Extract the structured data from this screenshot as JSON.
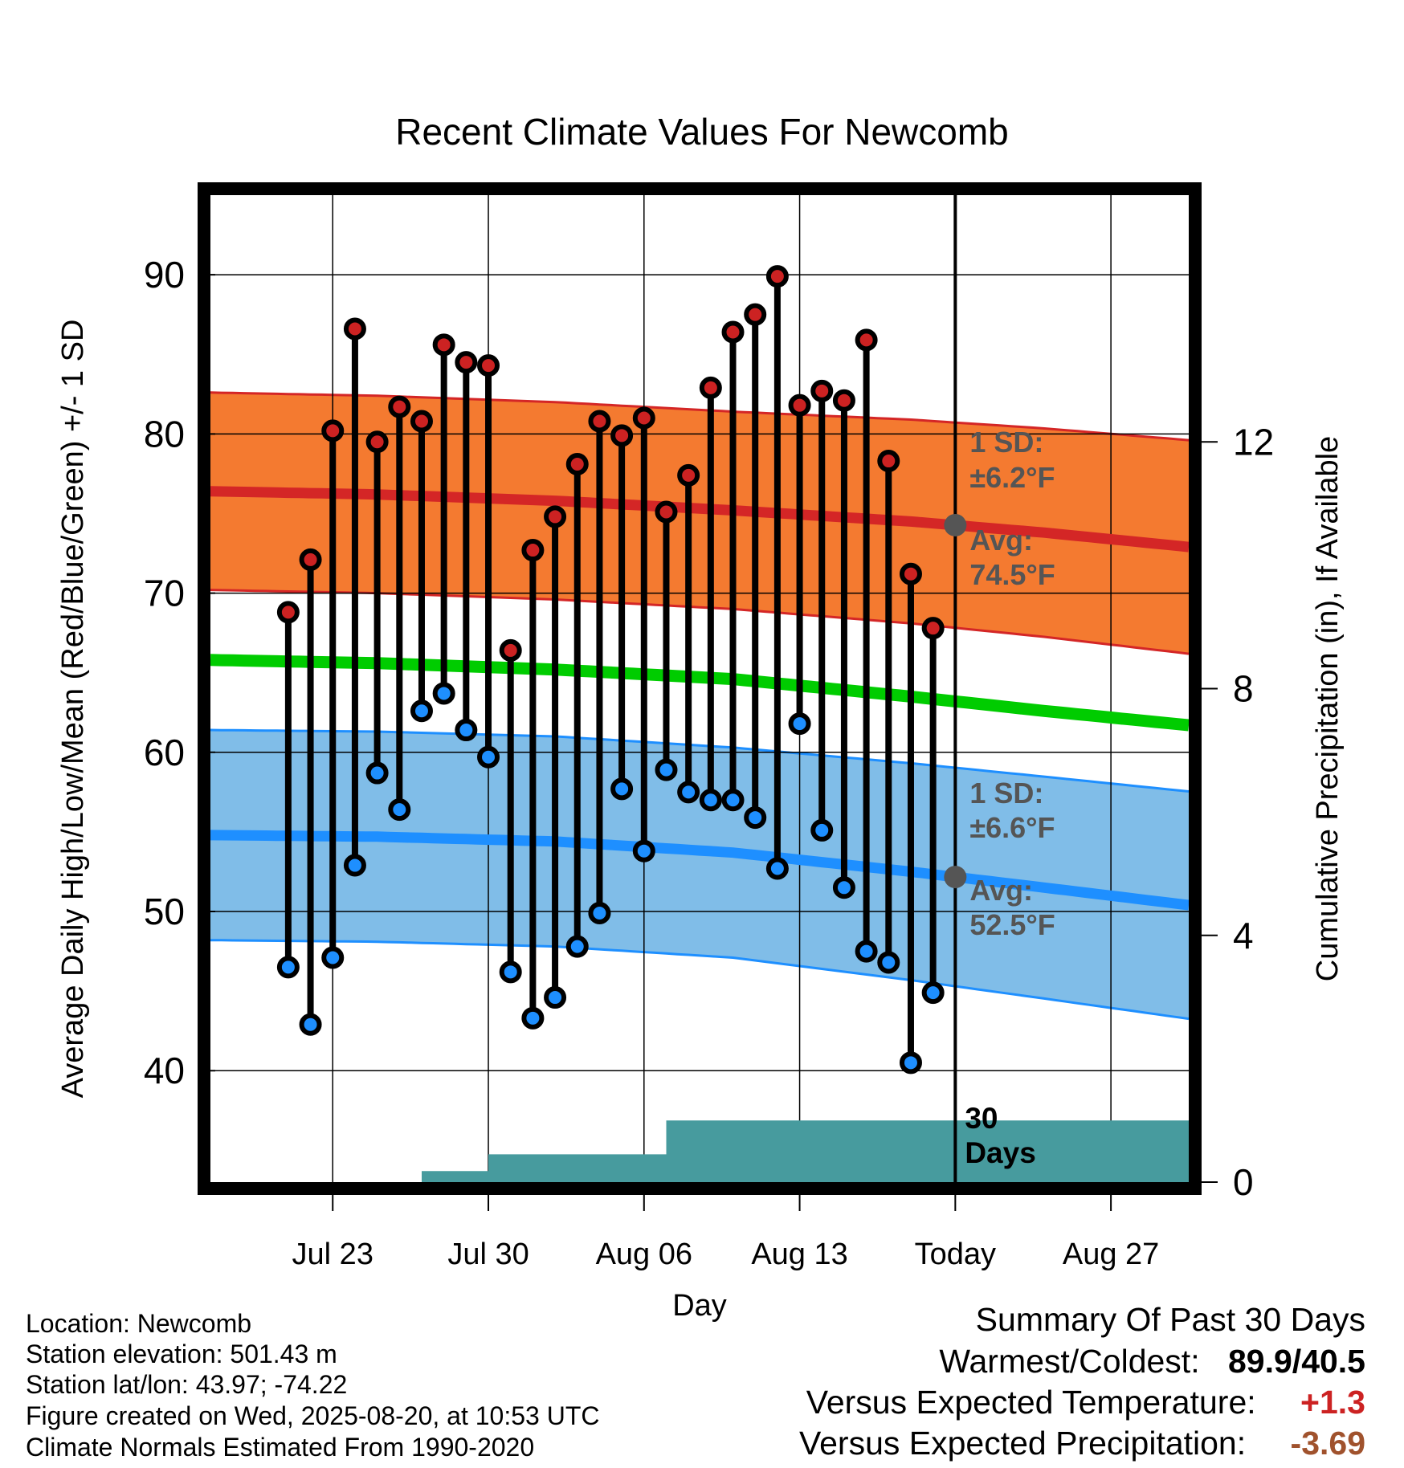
{
  "chart_data": {
    "type": "line",
    "title": "Recent Climate Values For Newcomb",
    "xlabel": "Day",
    "ylabel": "Average Daily High/Low/Mean (Red/Blue/Green) +/- 1 SD",
    "y2label": "Cumulative Precipitation (in), If Available",
    "ylim": [
      33,
      95
    ],
    "y2lim": [
      0,
      16
    ],
    "xlim": [
      -33.5,
      10.5
    ],
    "x_units": "days relative to Today (Aug 20)",
    "yticks": [
      40,
      50,
      60,
      70,
      80,
      90
    ],
    "y2ticks": [
      0,
      4,
      8,
      12
    ],
    "xticks": [
      {
        "day": -28,
        "label": "Jul 23"
      },
      {
        "day": -21,
        "label": "Jul 30"
      },
      {
        "day": -14,
        "label": "Aug 06"
      },
      {
        "day": -7,
        "label": "Aug 13"
      },
      {
        "day": 0,
        "label": "Today"
      },
      {
        "day": 7,
        "label": "Aug 27"
      }
    ],
    "grid": true,
    "today_marker": {
      "day": 0,
      "label_line1": "30",
      "label_line2": "Days"
    },
    "series": [
      {
        "name": "High",
        "color": "#cc2222",
        "days": [
          -30,
          -29,
          -28,
          -27,
          -26,
          -25,
          -24,
          -23,
          -22,
          -21,
          -20,
          -19,
          -18,
          -17,
          -16,
          -15,
          -14,
          -13,
          -12,
          -11,
          -10,
          -9,
          -8,
          -7,
          -6,
          -5,
          -4,
          -3,
          -2,
          -1
        ],
        "values": [
          68.8,
          72.1,
          80.2,
          86.6,
          79.5,
          81.7,
          80.8,
          85.6,
          84.5,
          84.3,
          66.4,
          72.7,
          74.8,
          78.1,
          80.8,
          79.9,
          81.0,
          75.1,
          77.4,
          82.9,
          86.4,
          87.5,
          89.9,
          81.8,
          82.7,
          82.1,
          85.9,
          78.3,
          71.2,
          67.8
        ]
      },
      {
        "name": "Low",
        "color": "#1e8fff",
        "days": [
          -30,
          -29,
          -28,
          -27,
          -26,
          -25,
          -24,
          -23,
          -22,
          -21,
          -20,
          -19,
          -18,
          -17,
          -16,
          -15,
          -14,
          -13,
          -12,
          -11,
          -10,
          -9,
          -8,
          -7,
          -6,
          -5,
          -4,
          -3,
          -2,
          -1
        ],
        "values": [
          46.5,
          42.9,
          47.1,
          52.9,
          58.7,
          56.4,
          62.6,
          63.7,
          61.4,
          59.7,
          46.2,
          43.3,
          44.6,
          47.8,
          49.9,
          57.7,
          53.8,
          58.9,
          57.5,
          57.0,
          57.0,
          55.9,
          52.7,
          61.8,
          55.1,
          51.5,
          47.5,
          46.8,
          40.5,
          44.9
        ]
      }
    ],
    "normals": {
      "days": [
        -33.5,
        -26,
        -18,
        -10,
        -2,
        4,
        10.5
      ],
      "high_avg": [
        76.4,
        76.2,
        75.8,
        75.2,
        74.5,
        73.8,
        72.9
      ],
      "high_sd": 6.2,
      "low_avg": [
        54.8,
        54.7,
        54.4,
        53.7,
        52.5,
        51.5,
        50.4
      ],
      "low_sd": 6.6,
      "mean_avg": [
        65.8,
        65.6,
        65.2,
        64.6,
        63.5,
        62.6,
        61.7
      ],
      "high_label": {
        "sd_label": "1 SD:",
        "sd_value": "±6.2°F",
        "avg_label": "Avg:",
        "avg_value": "74.5°F"
      },
      "low_label": {
        "sd_label": "1 SD:",
        "sd_value": "±6.6°F",
        "avg_label": "Avg:",
        "avg_value": "52.5°F"
      }
    },
    "precip": {
      "name": "Cumulative Precipitation",
      "color": "#479b9e",
      "days": [
        -33.5,
        -24,
        -24,
        -22,
        -22,
        -21,
        -21,
        -14,
        -14,
        -13,
        -13,
        10.5
      ],
      "values": [
        0,
        0,
        0.18,
        0.18,
        0.18,
        0.18,
        0.45,
        0.45,
        0.45,
        0.45,
        1.0,
        1.0
      ]
    },
    "colors": {
      "high_band": "#f47a30",
      "high_line": "#d42626",
      "low_band": "#80bde8",
      "low_line": "#1e8fff",
      "mean_line": "#00cc00",
      "marker_today": "#555555",
      "annotation_text": "#555555"
    }
  },
  "footer": {
    "location": "Location: Newcomb",
    "elevation": "Station elevation: 501.43 m",
    "latlon": "Station lat/lon: 43.97; -74.22",
    "created": "Figure created on Wed, 2025-08-20, at 10:53 UTC",
    "normals": "Climate Normals Estimated From 1990-2020"
  },
  "summary": {
    "title": "Summary Of Past 30 Days",
    "warm_cold_label": "Warmest/Coldest:",
    "warm_cold_value": "89.9/40.5",
    "temp_label": "Versus Expected Temperature:",
    "temp_value": "+1.3",
    "temp_color": "#cc2222",
    "precip_label": "Versus Expected Precipitation:",
    "precip_value": "-3.69",
    "precip_color": "#a0522d"
  }
}
